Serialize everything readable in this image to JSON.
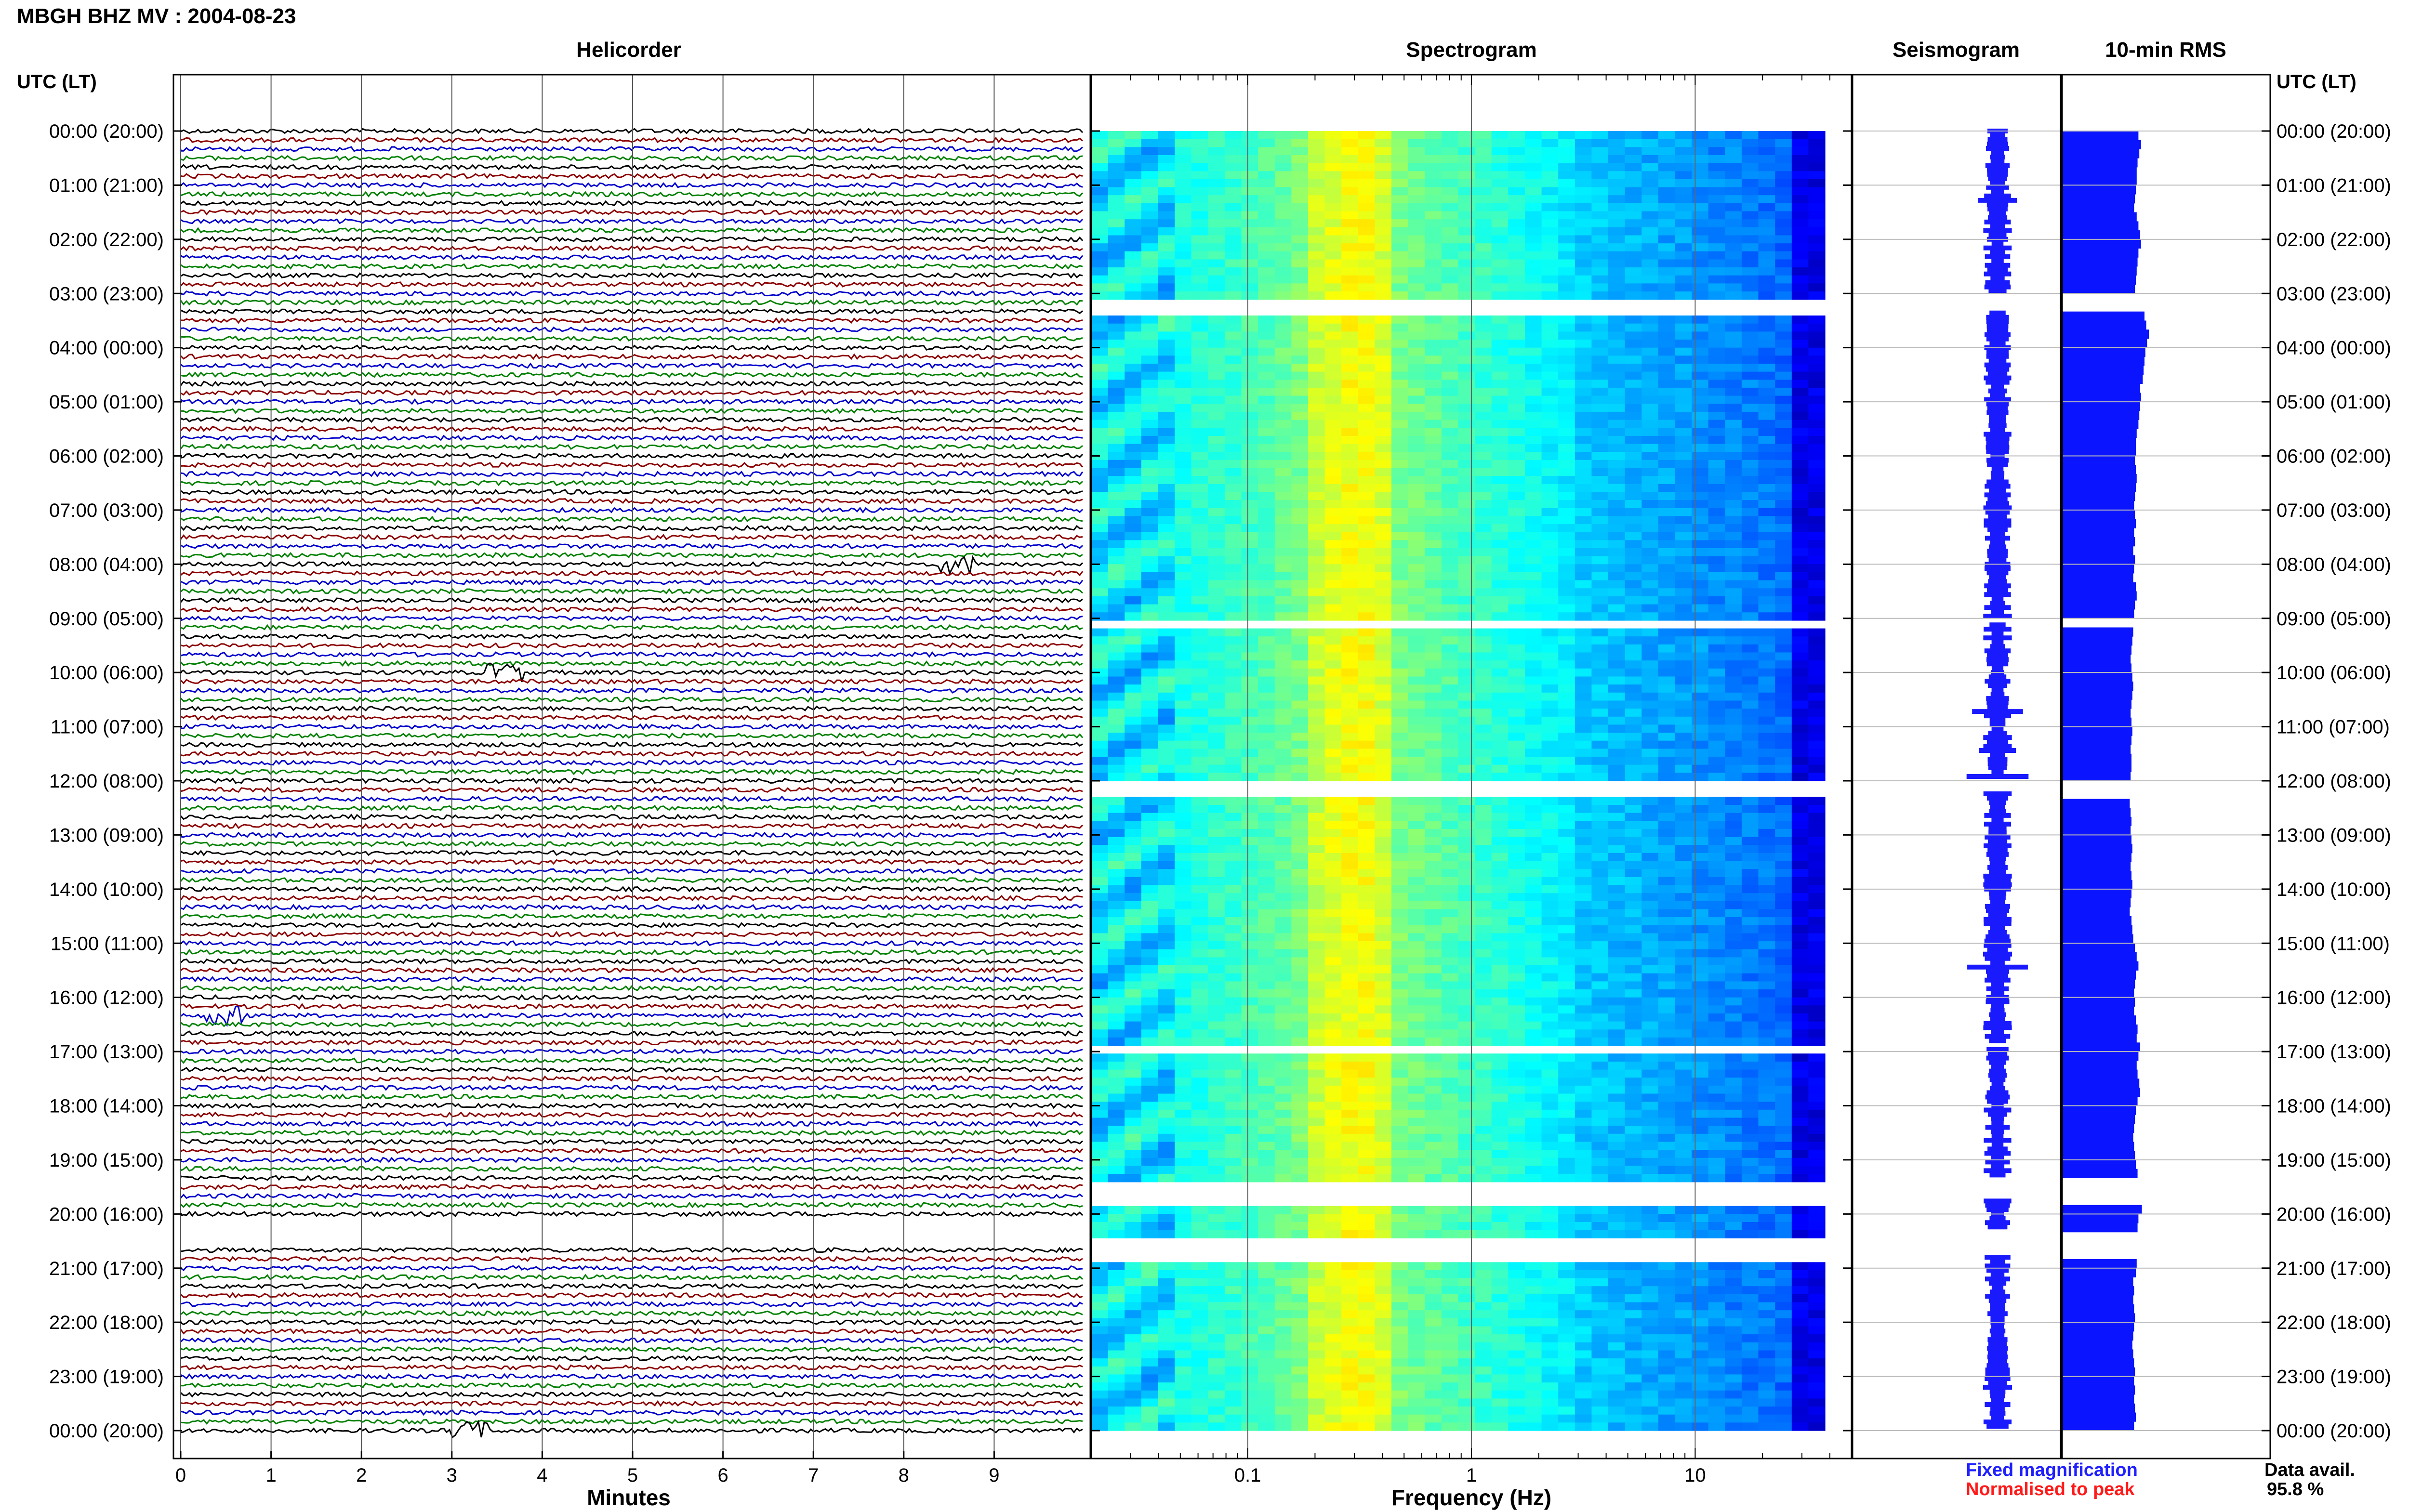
{
  "header": {
    "station_title": "MBGH BHZ MV : 2004-08-23"
  },
  "panels": {
    "helicorder": "Helicorder",
    "spectrogram": "Spectrogram",
    "seismogram": "Seismogram",
    "rms": "10-min RMS"
  },
  "time_axis_label": "UTC (LT)",
  "time_ticks": [
    "00:00 (20:00)",
    "01:00 (21:00)",
    "02:00 (22:00)",
    "03:00 (23:00)",
    "04:00 (00:00)",
    "05:00 (01:00)",
    "06:00 (02:00)",
    "07:00 (03:00)",
    "08:00 (04:00)",
    "09:00 (05:00)",
    "10:00 (06:00)",
    "11:00 (07:00)",
    "12:00 (08:00)",
    "13:00 (09:00)",
    "14:00 (10:00)",
    "15:00 (11:00)",
    "16:00 (12:00)",
    "17:00 (13:00)",
    "18:00 (14:00)",
    "19:00 (15:00)",
    "20:00 (16:00)",
    "21:00 (17:00)",
    "22:00 (18:00)",
    "23:00 (19:00)",
    "00:00 (20:00)"
  ],
  "legend": {
    "fixed": "Fixed magnification",
    "normalised": "Normalised to peak",
    "avail_label": "Data avail.",
    "avail_value": "95.8 %"
  },
  "colors": {
    "trace_cycle": [
      "#000000",
      "#8b0000",
      "#0000cc",
      "#008000"
    ],
    "fixed_magnification": "#1f1fff",
    "normalised": "#ff1a1a",
    "rms_bar": "#0a14ff",
    "seismogram": "#1a1aff"
  },
  "chart_data": {
    "type": "heatmap",
    "date": "2004-08-23",
    "helicorder": {
      "xlabel": "Minutes",
      "x_ticks": [
        0,
        1,
        2,
        3,
        4,
        5,
        6,
        7,
        8,
        9
      ],
      "xlim": [
        0,
        10
      ],
      "lines": 145,
      "minutes_per_line": 10,
      "notable_events": [
        {
          "hour_utc": 8.0,
          "minute": 8.6
        },
        {
          "hour_utc": 10.0,
          "minute": 3.6
        },
        {
          "hour_utc": 16.3,
          "minute": 0.5
        },
        {
          "hour_utc": 24.0,
          "minute": 3.2
        }
      ]
    },
    "spectrogram": {
      "xlabel": "Frequency (Hz)",
      "x_scale": "log",
      "xlim": [
        0.02,
        50
      ],
      "x_ticks": [
        0.1,
        1,
        10
      ],
      "x_tick_labels": [
        "0.1",
        "1",
        "10"
      ],
      "colormap": "jet",
      "peak_band_hz": [
        0.2,
        0.4
      ],
      "freq_cutoff_hz": 25
    },
    "data_gaps_utc": [
      {
        "start": 3.0,
        "end": 3.33
      },
      {
        "start": 9.0,
        "end": 9.1
      },
      {
        "start": 12.0,
        "end": 12.2
      },
      {
        "start": 16.85,
        "end": 16.95
      },
      {
        "start": 19.3,
        "end": 19.75
      },
      {
        "start": 20.3,
        "end": 20.75
      }
    ],
    "rms_10min": {
      "x_values": [
        0.88,
        0.91,
        0.89,
        0.87,
        0.86,
        0.86,
        0.85,
        0.84,
        0.83,
        0.86,
        0.88,
        0.9,
        0.91,
        0.88,
        0.87,
        0.86,
        0.85,
        0.84,
        0.95,
        0.97,
        1.0,
        0.98,
        0.96,
        0.95,
        0.94,
        0.93,
        0.9,
        0.91,
        0.9,
        0.89,
        0.88,
        0.86,
        0.85,
        0.85,
        0.84,
        0.85,
        0.86,
        0.85,
        0.84,
        0.83,
        0.84,
        0.85,
        0.83,
        0.84,
        0.82,
        0.84,
        0.83,
        0.82,
        0.85,
        0.86,
        0.84,
        0.83,
        0.82,
        0.81,
        0.8,
        0.79,
        0.8,
        0.81,
        0.82,
        0.81,
        0.8,
        0.79,
        0.8,
        0.81,
        0.8,
        0.79,
        0.8,
        0.8,
        0.79,
        0.78,
        0.79,
        0.8,
        0.79,
        0.8,
        0.81,
        0.8,
        0.79,
        0.8,
        0.81,
        0.8,
        0.79,
        0.78,
        0.8,
        0.81,
        0.82,
        0.84,
        0.86,
        0.88,
        0.85,
        0.84,
        0.83,
        0.84,
        0.83,
        0.85,
        0.87,
        0.86,
        0.9,
        0.88,
        0.86,
        0.87,
        0.89,
        0.9,
        0.87,
        0.85,
        0.84,
        0.83,
        0.82,
        0.83,
        0.84,
        0.85,
        0.87,
        0.92,
        0.88,
        0.87,
        0.86,
        0.85,
        0.82,
        0.83,
        0.82,
        0.83,
        0.84,
        0.83,
        0.82,
        0.81,
        0.82,
        0.83,
        0.84,
        0.83,
        0.84,
        0.83,
        0.84,
        0.85,
        0.83,
        0.84,
        0.86,
        0.85,
        0.87,
        0.9,
        0.92
      ]
    }
  }
}
